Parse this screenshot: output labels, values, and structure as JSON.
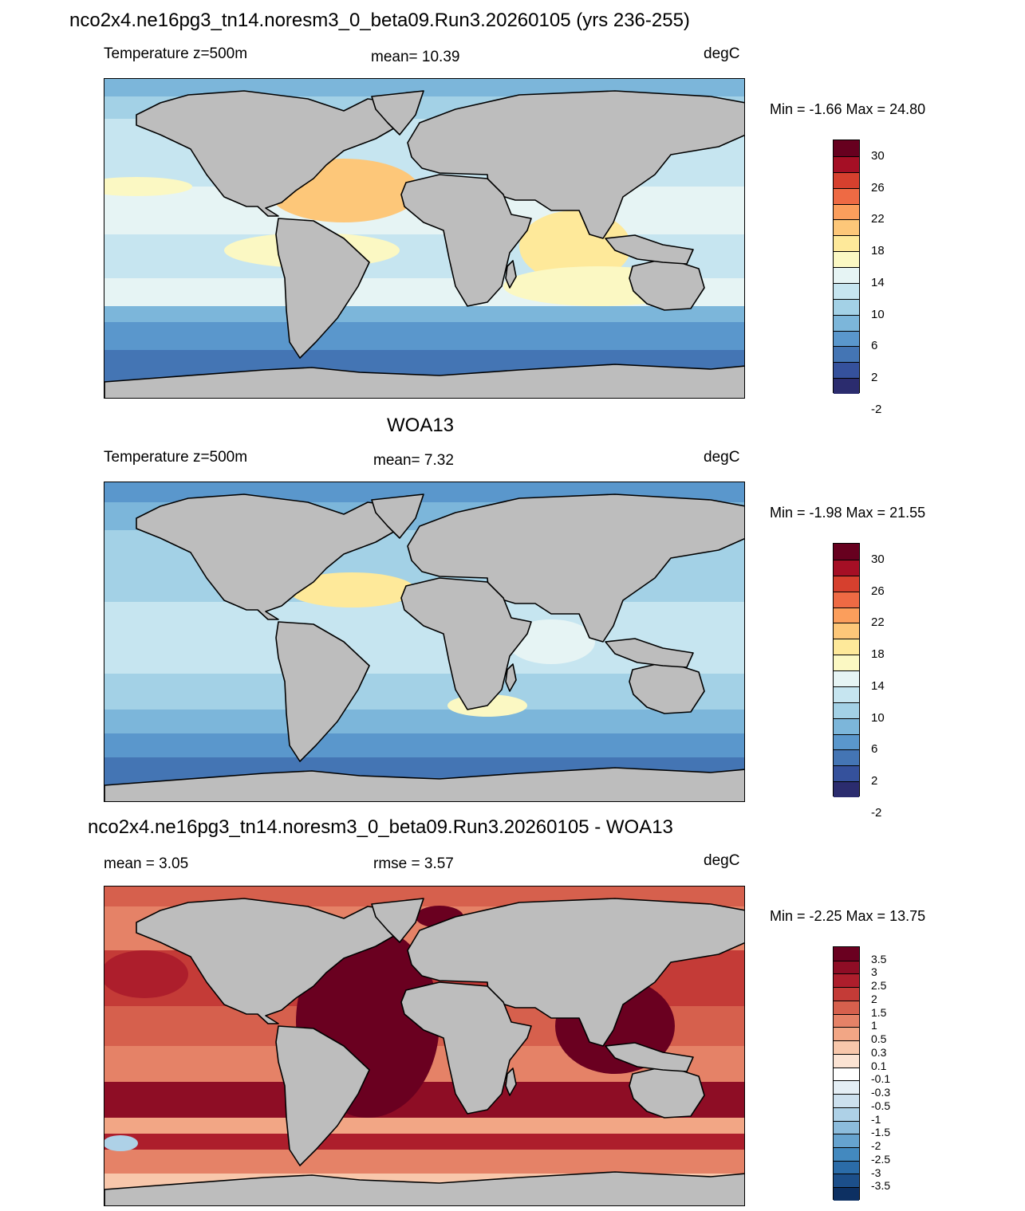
{
  "figure": {
    "title": "nco2x4.ne16pg3_tn14.noresm3_0_beta09.Run3.20260105 (yrs 236-255)"
  },
  "panels": [
    {
      "id": "model",
      "title": "",
      "left_label": "Temperature z=500m",
      "center_label": "mean=  10.39",
      "right_label": "degC",
      "minmax": "Min =  -1.66 Max =  24.80"
    },
    {
      "id": "obs",
      "title": "WOA13",
      "left_label": "Temperature z=500m",
      "center_label": "mean=   7.32",
      "right_label": "degC",
      "minmax": "Min =  -1.98 Max =  21.55"
    },
    {
      "id": "diff",
      "title": "nco2x4.ne16pg3_tn14.noresm3_0_beta09.Run3.20260105 - WOA13",
      "left_label": "mean =   3.05",
      "center_label": "rmse =   3.57",
      "right_label": "degC",
      "minmax": "Min =  -2.25 Max =  13.75"
    }
  ],
  "chart_data": [
    {
      "type": "heatmap",
      "name_of_field": "Temperature z=500m",
      "units": "degC",
      "mean": 10.39,
      "min": -1.66,
      "max": 24.8,
      "colorbar_labels": [
        "30",
        "26",
        "22",
        "18",
        "14",
        "10",
        "6",
        "2",
        "-2"
      ],
      "colorbar_colors": [
        "#67001f",
        "#a50f25",
        "#d6402e",
        "#ee6a44",
        "#fb9e5c",
        "#fdc779",
        "#fee99a",
        "#fbf8c3",
        "#e6f4f4",
        "#c6e5f0",
        "#a3d1e6",
        "#7cb6da",
        "#5a97cc",
        "#4475b4",
        "#35519c",
        "#2b2c6e"
      ],
      "land_color": "#bdbdbd"
    },
    {
      "type": "heatmap",
      "name_of_field": "Temperature z=500m",
      "units": "degC",
      "mean": 7.32,
      "min": -1.98,
      "max": 21.55,
      "colorbar_labels": [
        "30",
        "26",
        "22",
        "18",
        "14",
        "10",
        "6",
        "2",
        "-2"
      ],
      "colorbar_colors": [
        "#67001f",
        "#a50f25",
        "#d6402e",
        "#ee6a44",
        "#fb9e5c",
        "#fdc779",
        "#fee99a",
        "#fbf8c3",
        "#e6f4f4",
        "#c6e5f0",
        "#a3d1e6",
        "#7cb6da",
        "#5a97cc",
        "#4475b4",
        "#35519c",
        "#2b2c6e"
      ],
      "land_color": "#bdbdbd"
    },
    {
      "type": "heatmap",
      "units": "degC",
      "mean": 3.05,
      "rmse": 3.57,
      "min": -2.25,
      "max": 13.75,
      "colorbar_labels": [
        "3.5",
        "3",
        "2.5",
        "2",
        "1.5",
        "1",
        "0.5",
        "0.3",
        "0.1",
        "-0.1",
        "-0.3",
        "-0.5",
        "-1",
        "-1.5",
        "-2",
        "-2.5",
        "-3",
        "-3.5"
      ],
      "colorbar_colors": [
        "#6a0020",
        "#8e0d25",
        "#ad1e2c",
        "#c43b37",
        "#d6604d",
        "#e58267",
        "#f2a685",
        "#f8c7ab",
        "#fbe3d3",
        "#ffffff",
        "#e4eef5",
        "#cce0ee",
        "#aed1e7",
        "#8cbcdc",
        "#66a3cf",
        "#4389bf",
        "#2b6ca8",
        "#1c4f8a",
        "#0d3062"
      ],
      "land_color": "#bdbdbd"
    }
  ]
}
